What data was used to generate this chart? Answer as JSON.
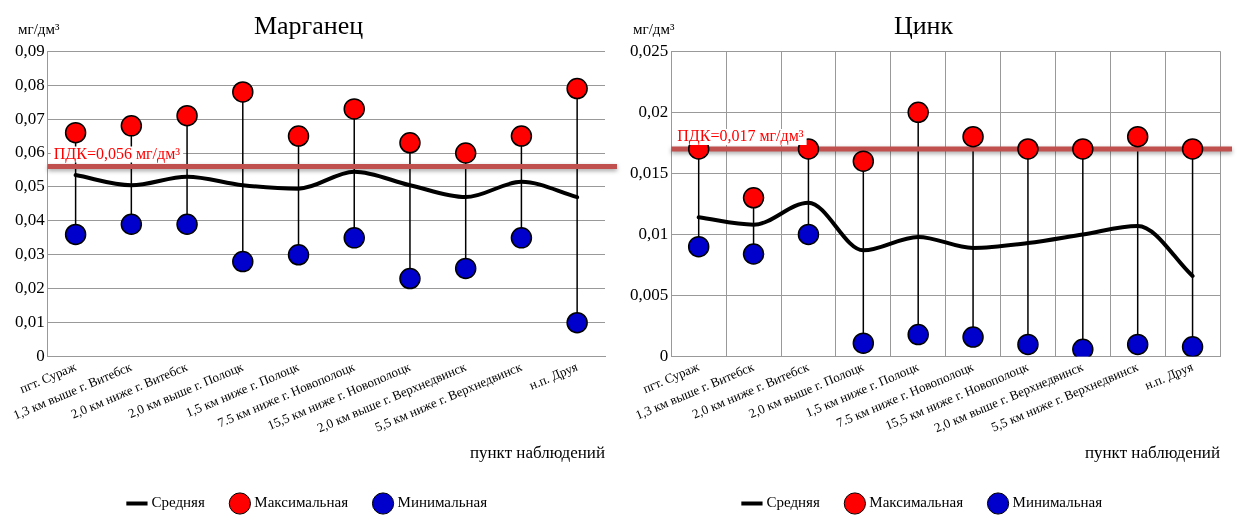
{
  "chart_data": [
    {
      "type": "line",
      "title": "Марганец",
      "ylabel": "мг/дм³",
      "xlabel": "пункт наблюдений",
      "categories": [
        "пгт. Сураж",
        "1,3 км выше г. Витебск",
        "2,0 км ниже г. Витебск",
        "2,0 км выше г. Полоцк",
        "1,5 км ниже г. Полоцк",
        "7.5 км ниже г. Новополоцк",
        "15,5 км ниже г. Новополоцк",
        "2,0 км выше г. Верхнедвинск",
        "5,5 км ниже г. Верхнедвинск",
        "н.п. Друя"
      ],
      "series": [
        {
          "name": "Средняя",
          "type": "line",
          "marker": "none",
          "color": "#000000",
          "values": [
            0.0535,
            0.0505,
            0.053,
            0.0505,
            0.0495,
            0.0545,
            0.0505,
            0.047,
            0.0515,
            0.047
          ]
        },
        {
          "name": "Максимальная",
          "type": "scatter",
          "marker": "circle",
          "color": "#ff0000",
          "values": [
            0.066,
            0.068,
            0.071,
            0.078,
            0.065,
            0.073,
            0.063,
            0.06,
            0.065,
            0.079
          ]
        },
        {
          "name": "Минимальная",
          "type": "scatter",
          "marker": "circle",
          "color": "#0000cc",
          "values": [
            0.036,
            0.039,
            0.039,
            0.028,
            0.03,
            0.035,
            0.023,
            0.026,
            0.035,
            0.01
          ]
        }
      ],
      "ylim": [
        0,
        0.09
      ],
      "yticks": [
        {
          "value": 0,
          "label": "0"
        },
        {
          "value": 0.01,
          "label": "0,01"
        },
        {
          "value": 0.02,
          "label": "0,02"
        },
        {
          "value": 0.03,
          "label": "0,03"
        },
        {
          "value": 0.04,
          "label": "0,04"
        },
        {
          "value": 0.05,
          "label": "0,05"
        },
        {
          "value": 0.06,
          "label": "0,06"
        },
        {
          "value": 0.07,
          "label": "0,07"
        },
        {
          "value": 0.08,
          "label": "0,08"
        },
        {
          "value": 0.09,
          "label": "0,09"
        }
      ],
      "ref_lines": [
        {
          "axis": "y",
          "value": 0.056,
          "label": "ПДК=0,056 мг/дм³",
          "color": "#c0504d"
        }
      ],
      "grid": "y",
      "legend": "bottom"
    },
    {
      "type": "line",
      "title": "Цинк",
      "ylabel": "мг/дм³",
      "xlabel": "пункт наблюдений",
      "categories": [
        "пгт. Сураж",
        "1,3 км выше г. Витебск",
        "2,0 км ниже г. Витебск",
        "2,0 км выше г. Полоцк",
        "1,5 км ниже г. Полоцк",
        "7.5 км ниже г. Новополоцк",
        "15,5 км ниже г. Новополоцк",
        "2,0 км выше г. Верхнедвинск",
        "5,5 км ниже г. Верхнедвинск",
        "н.п. Друя"
      ],
      "series": [
        {
          "name": "Средняя",
          "type": "line",
          "marker": "none",
          "color": "#000000",
          "values": [
            0.0114,
            0.0108,
            0.0126,
            0.0087,
            0.0098,
            0.0089,
            0.0093,
            0.01,
            0.0107,
            0.0066
          ]
        },
        {
          "name": "Максимальная",
          "type": "scatter",
          "marker": "circle",
          "color": "#ff0000",
          "values": [
            0.017,
            0.013,
            0.017,
            0.016,
            0.02,
            0.018,
            0.017,
            0.017,
            0.018,
            0.017
          ]
        },
        {
          "name": "Минимальная",
          "type": "scatter",
          "marker": "circle",
          "color": "#0000cc",
          "values": [
            0.009,
            0.0084,
            0.01,
            0.0011,
            0.0018,
            0.0016,
            0.001,
            0.0006,
            0.001,
            0.0008
          ]
        }
      ],
      "ylim": [
        0,
        0.025
      ],
      "yticks": [
        {
          "value": 0,
          "label": "0"
        },
        {
          "value": 0.005,
          "label": "0,005"
        },
        {
          "value": 0.01,
          "label": "0,01"
        },
        {
          "value": 0.015,
          "label": "0,015"
        },
        {
          "value": 0.02,
          "label": "0,02"
        },
        {
          "value": 0.025,
          "label": "0,025"
        }
      ],
      "ref_lines": [
        {
          "axis": "y",
          "value": 0.017,
          "label": "ПДК=0,017 мг/дм³",
          "color": "#c0504d"
        }
      ],
      "grid": true,
      "legend": "bottom"
    }
  ]
}
